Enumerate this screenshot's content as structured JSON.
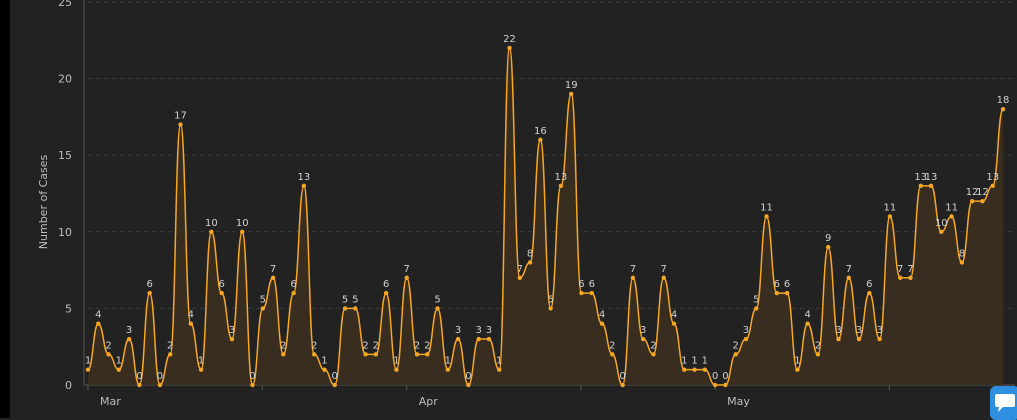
{
  "colors": {
    "background": "#222222",
    "line": "#f5a623",
    "area": "#3b2f1f",
    "grid": "#3d3d3d",
    "text": "#bdbdbd",
    "label": "#d0d0d0",
    "chat": "#2e8fe0"
  },
  "chat_icon": "speech-bubble-icon",
  "chart_data": {
    "type": "area",
    "xlabel": "",
    "ylabel": "Number of Cases",
    "ylim": [
      0,
      25
    ],
    "yticks": [
      0,
      5,
      10,
      15,
      20,
      25
    ],
    "grid": true,
    "month_labels": [
      {
        "label": "Mar",
        "index": 0
      },
      {
        "label": "Apr",
        "index": 31
      },
      {
        "label": "May",
        "index": 61
      }
    ],
    "series": [
      {
        "values": [
          1,
          4,
          2,
          1,
          3,
          0,
          6,
          0,
          2,
          17,
          4,
          1,
          10,
          6,
          3,
          10,
          0,
          5,
          7,
          2,
          6,
          13,
          2,
          1,
          0,
          5,
          5,
          2,
          2,
          6,
          1,
          7,
          2,
          2,
          5,
          1,
          3,
          0,
          3,
          3,
          1,
          22,
          7,
          8,
          16,
          5,
          13,
          19,
          6,
          6,
          4,
          2,
          0,
          7,
          3,
          2,
          7,
          4,
          1,
          1,
          1,
          0,
          0,
          2,
          3,
          5,
          11,
          6,
          6,
          1,
          4,
          2,
          9,
          3,
          7,
          3,
          6,
          3,
          11,
          7,
          7,
          13,
          13,
          10,
          11,
          8,
          12,
          12,
          13,
          18
        ]
      }
    ]
  }
}
